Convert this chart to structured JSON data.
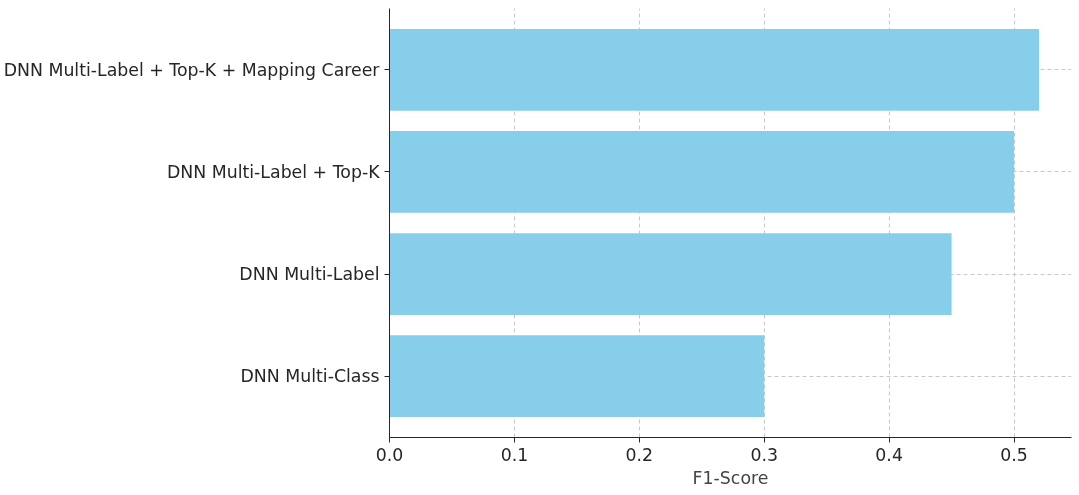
{
  "chart_data": {
    "type": "bar",
    "orientation": "horizontal",
    "xlabel": "F1-Score",
    "categories": [
      "DNN Multi-Label + Top-K + Mapping Career",
      "DNN Multi-Label + Top-K",
      "DNN Multi-Label",
      "DNN Multi-Class"
    ],
    "values": [
      0.52,
      0.5,
      0.45,
      0.3
    ],
    "color": "#87ceeb",
    "xlim": [
      0,
      0.546
    ],
    "xticks": [
      {
        "value": 0,
        "label": "0.0"
      },
      {
        "value": 0.1,
        "label": "0.1"
      },
      {
        "value": 0.2,
        "label": "0.2"
      },
      {
        "value": 0.3,
        "label": "0.3"
      },
      {
        "value": 0.4,
        "label": "0.4"
      },
      {
        "value": 0.5,
        "label": "0.5"
      }
    ],
    "grid": true
  }
}
